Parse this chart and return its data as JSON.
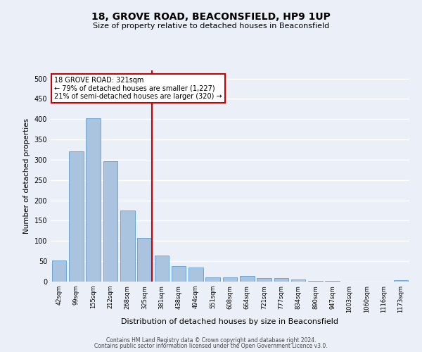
{
  "title": "18, GROVE ROAD, BEACONSFIELD, HP9 1UP",
  "subtitle": "Size of property relative to detached houses in Beaconsfield",
  "xlabel": "Distribution of detached houses by size in Beaconsfield",
  "ylabel": "Number of detached properties",
  "footer_line1": "Contains HM Land Registry data © Crown copyright and database right 2024.",
  "footer_line2": "Contains public sector information licensed under the Open Government Licence v3.0.",
  "categories": [
    "42sqm",
    "99sqm",
    "155sqm",
    "212sqm",
    "268sqm",
    "325sqm",
    "381sqm",
    "438sqm",
    "494sqm",
    "551sqm",
    "608sqm",
    "664sqm",
    "721sqm",
    "777sqm",
    "834sqm",
    "890sqm",
    "947sqm",
    "1003sqm",
    "1060sqm",
    "1116sqm",
    "1173sqm"
  ],
  "values": [
    52,
    320,
    402,
    297,
    175,
    108,
    64,
    38,
    35,
    11,
    10,
    14,
    9,
    8,
    5,
    2,
    1,
    0,
    0,
    0,
    4
  ],
  "bar_color": "#aac4e0",
  "bar_edge_color": "#5a9fd4",
  "background_color": "#eaeff8",
  "grid_color": "#ffffff",
  "vline_index": 5,
  "vline_color": "#cc0000",
  "annotation_line1": "18 GROVE ROAD: 321sqm",
  "annotation_line2": "← 79% of detached houses are smaller (1,227)",
  "annotation_line3": "21% of semi-detached houses are larger (320) →",
  "annotation_box_color": "#ffffff",
  "annotation_box_edge": "#cc0000",
  "ylim": [
    0,
    520
  ],
  "yticks": [
    0,
    50,
    100,
    150,
    200,
    250,
    300,
    350,
    400,
    450,
    500
  ]
}
